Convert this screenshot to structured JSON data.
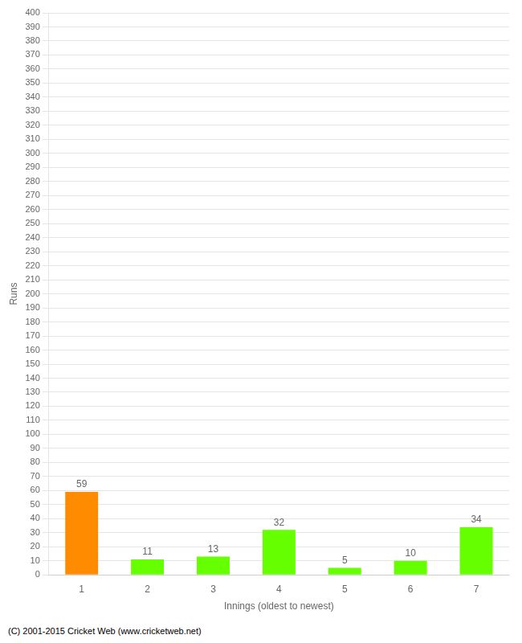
{
  "chart_data": {
    "type": "bar",
    "xlabel": "Innings (oldest to newest)",
    "ylabel": "Runs",
    "categories": [
      "1",
      "2",
      "3",
      "4",
      "5",
      "6",
      "7"
    ],
    "values": [
      59,
      11,
      13,
      32,
      5,
      10,
      34
    ],
    "colors": [
      "#FF8C00",
      "#66FF00",
      "#66FF00",
      "#66FF00",
      "#66FF00",
      "#66FF00",
      "#66FF00"
    ],
    "ylim": [
      0,
      400
    ],
    "yticks": [
      0,
      10,
      20,
      30,
      40,
      50,
      60,
      70,
      80,
      90,
      100,
      110,
      120,
      130,
      140,
      150,
      160,
      170,
      180,
      190,
      200,
      210,
      220,
      230,
      240,
      250,
      260,
      270,
      280,
      290,
      300,
      310,
      320,
      330,
      340,
      350,
      360,
      370,
      380,
      390,
      400
    ],
    "grid": true,
    "data_labels": true,
    "footer": "(C) 2001-2015 Cricket Web (www.cricketweb.net)"
  }
}
